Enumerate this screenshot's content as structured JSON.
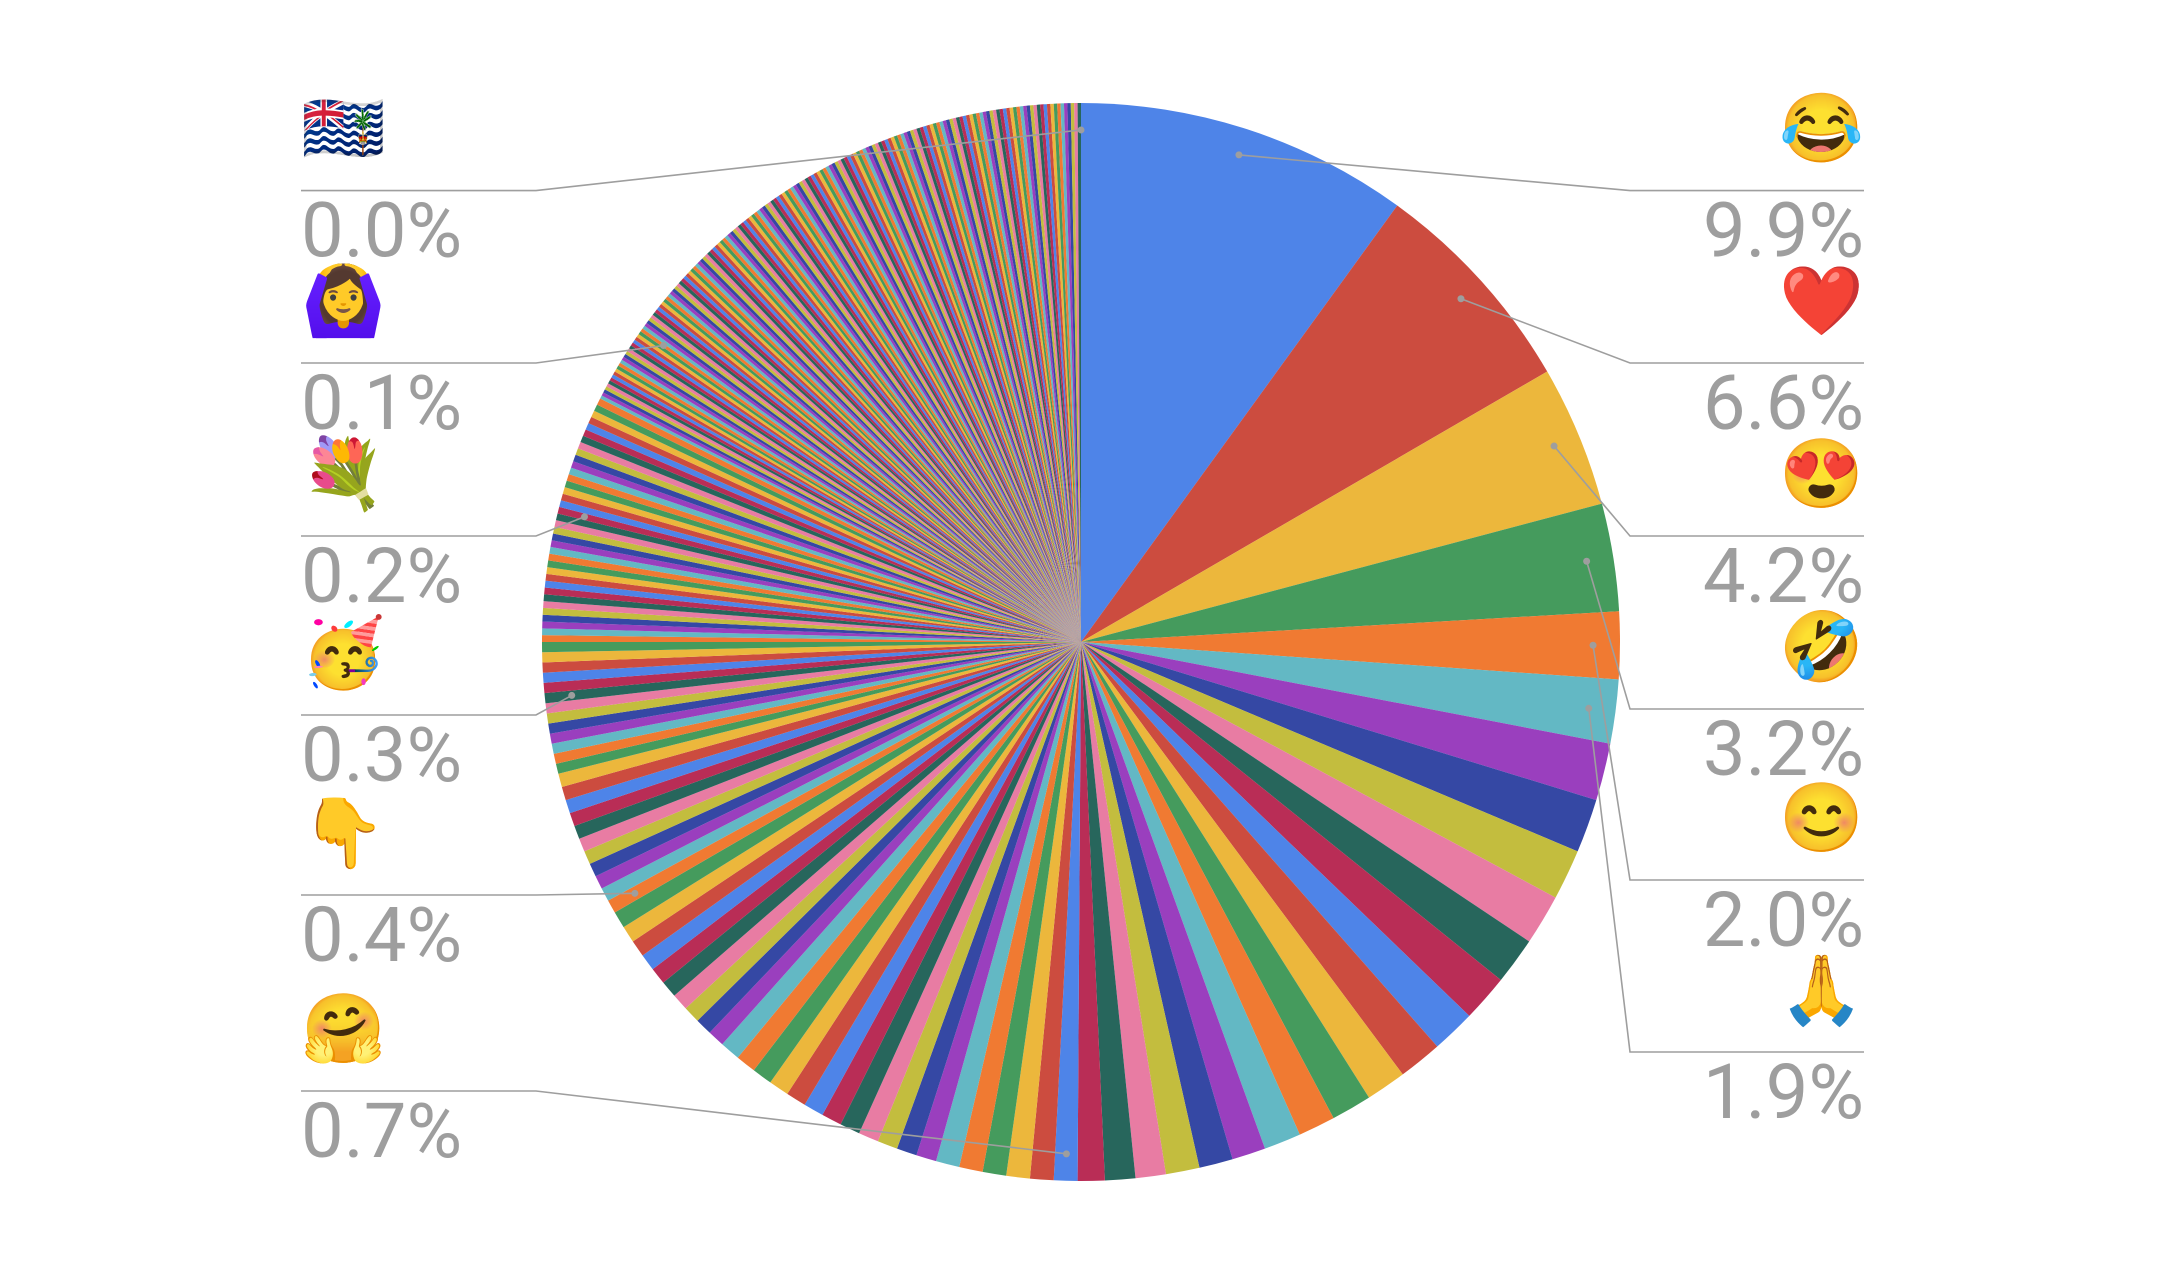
{
  "chart_data": {
    "type": "pie",
    "colors": [
      "#4e84e8",
      "#cc4c3f",
      "#ecb73c",
      "#459b5d",
      "#f07a32",
      "#63b8c4",
      "#9a3fbe",
      "#3548a4",
      "#c3bd3e",
      "#e87ca3",
      "#27665c",
      "#b92d56"
    ],
    "categories": [
      "😂",
      "❤️",
      "😍",
      "🤣",
      "😊",
      "🙏",
      null,
      null,
      null,
      null,
      null,
      null,
      null,
      null,
      null,
      null,
      null,
      null,
      null,
      null,
      null,
      null,
      null,
      null,
      "🤗",
      null,
      null,
      null,
      null,
      null,
      null,
      null,
      null,
      null,
      null,
      null,
      null,
      null,
      null,
      null,
      null,
      null,
      null,
      null,
      null,
      null,
      null,
      null,
      null,
      null,
      null,
      null,
      "👇",
      null,
      null,
      null,
      null,
      null,
      null,
      null,
      null,
      null,
      null,
      null,
      null,
      null,
      null,
      null,
      null,
      null,
      "🥳",
      null,
      null,
      null,
      null,
      null,
      null,
      null,
      null,
      null,
      null,
      null,
      null,
      null,
      null,
      null,
      null,
      null,
      null,
      null,
      null,
      null,
      null,
      null,
      null,
      "💐",
      null,
      null,
      null,
      null,
      null,
      null,
      null,
      null,
      null,
      null,
      null,
      null,
      null,
      null,
      null,
      null,
      null,
      null,
      null,
      null,
      null,
      null,
      null,
      null,
      null,
      null,
      null,
      null,
      null,
      null,
      null,
      null,
      null,
      null,
      null,
      null,
      null,
      null,
      null,
      null,
      "🙆‍♀️",
      null,
      null,
      null,
      null,
      null,
      null,
      null,
      null,
      null,
      null,
      null,
      null,
      null,
      null,
      null,
      null,
      null,
      null,
      null,
      null,
      null,
      null,
      null,
      null,
      null,
      null,
      null,
      null,
      null,
      null,
      null,
      null,
      null,
      null,
      null,
      null,
      null,
      null,
      null,
      null,
      null,
      null,
      null,
      null,
      null,
      null,
      null,
      null,
      null,
      null,
      null,
      null,
      null,
      null,
      null,
      null,
      null,
      null,
      null,
      null,
      null,
      null,
      null,
      null,
      null,
      null,
      null,
      null,
      null,
      null,
      null,
      null,
      null,
      null,
      null,
      null,
      null,
      null,
      null,
      null,
      null,
      null,
      null,
      null,
      null,
      null,
      null,
      null,
      null,
      null,
      null,
      null,
      null,
      null,
      null,
      null,
      null,
      null,
      null,
      null,
      null,
      null,
      null,
      null,
      null,
      null,
      null,
      null,
      null,
      null,
      null,
      null,
      null,
      null,
      null,
      null,
      null,
      null,
      null,
      null,
      null,
      null,
      null,
      null,
      null,
      null,
      null,
      null,
      null,
      null,
      null,
      null,
      null,
      null,
      null,
      null,
      null,
      null,
      null,
      null,
      null,
      null,
      null,
      null,
      null,
      null,
      null,
      null,
      null,
      null,
      "🇮🇴"
    ],
    "values": [
      9.9,
      6.6,
      4.2,
      3.2,
      2.0,
      1.9,
      1.7,
      1.6,
      1.5,
      1.5,
      1.4,
      1.4,
      1.3,
      1.3,
      1.2,
      1.2,
      1.1,
      1.1,
      1.0,
      1.0,
      1.0,
      0.9,
      0.9,
      0.8,
      0.7,
      0.7,
      0.7,
      0.7,
      0.7,
      0.7,
      0.6,
      0.6,
      0.6,
      0.6,
      0.6,
      0.6,
      0.6,
      0.6,
      0.6,
      0.6,
      0.6,
      0.6,
      0.5,
      0.5,
      0.5,
      0.5,
      0.5,
      0.5,
      0.5,
      0.5,
      0.5,
      0.5,
      0.4,
      0.4,
      0.4,
      0.4,
      0.4,
      0.4,
      0.4,
      0.4,
      0.4,
      0.4,
      0.4,
      0.3,
      0.3,
      0.3,
      0.3,
      0.3,
      0.3,
      0.3,
      0.3,
      0.3,
      0.3,
      0.3,
      0.3,
      0.3,
      0.2,
      0.2,
      0.2,
      0.2,
      0.2,
      0.2,
      0.2,
      0.2,
      0.2,
      0.2,
      0.2,
      0.2,
      0.2,
      0.2,
      0.2,
      0.2,
      0.2,
      0.2,
      0.2,
      0.2,
      0.2,
      0.2,
      0.2,
      0.2,
      0.2,
      0.2,
      0.2,
      0.2,
      0.2,
      0.2,
      0.2,
      0.2,
      0.2,
      0.2,
      0.2,
      0.2,
      0.2,
      0.1,
      0.1,
      0.1,
      0.1,
      0.1,
      0.1,
      0.1,
      0.1,
      0.1,
      0.1,
      0.1,
      0.1,
      0.1,
      0.1,
      0.1,
      0.1,
      0.1,
      0.1,
      0.1,
      0.1,
      0.1,
      0.1,
      0.1,
      0.1,
      0.1,
      0.1,
      0.1,
      0.1,
      0.1,
      0.1,
      0.1,
      0.1,
      0.1,
      0.1,
      0.1,
      0.1,
      0.1,
      0.1,
      0.1,
      0.1,
      0.1,
      0.1,
      0.1,
      0.1,
      0.1,
      0.1,
      0.1,
      0.1,
      0.1,
      0.1,
      0.1,
      0.1,
      0.1,
      0.1,
      0.1,
      0.1,
      0.1,
      0.1,
      0.1,
      0.1,
      0.1,
      0.1,
      0.1,
      0.1,
      0.1,
      0.1,
      0.1,
      0.1,
      0.1,
      0.1,
      0.1,
      0.1,
      0.1,
      0.1,
      0.1,
      0.1,
      0.1,
      0.1,
      0.1,
      0.1,
      0.1,
      0.1,
      0.1,
      0.1,
      0.1,
      0.1,
      0.1,
      0.1,
      0.1,
      0.1,
      0.1,
      0.1,
      0.1,
      0.1,
      0.1,
      0.1,
      0.1,
      0.1,
      0.1,
      0.1,
      0.1,
      0.1,
      0.1,
      0.1,
      0.1,
      0.1,
      0.1,
      0.1,
      0.1,
      0.1,
      0.1,
      0.1,
      0.1,
      0.1,
      0.1,
      0.1,
      0.1,
      0.1,
      0.1,
      0.1,
      0.1,
      0.1,
      0.1,
      0.1,
      0.1,
      0.1,
      0.1,
      0.1,
      0.1,
      0.1,
      0.1,
      0.1,
      0.1,
      0.1,
      0.1,
      0.1,
      0.1,
      0.1,
      0.1,
      0.1,
      0.1,
      0.1,
      0.1,
      0.1,
      0.1,
      0.1,
      0.1,
      0.1,
      0.1,
      0.1,
      0.1,
      0.1,
      0.1,
      0.1,
      0.1,
      0.1,
      0.1,
      0.1,
      0.1,
      0.1,
      0.1,
      0.1,
      0.1,
      0.1,
      0.1,
      0.1,
      0.1,
      0.1,
      0.1,
      0.1,
      0.1,
      0.1,
      0.1,
      0.1,
      0.0
    ],
    "value_labels": [
      "9.9%",
      "6.6%",
      "4.2%",
      "3.2%",
      "2.0%",
      "1.9%",
      null,
      null,
      null,
      null,
      null,
      null,
      null,
      null,
      null,
      null,
      null,
      null,
      null,
      null,
      null,
      null,
      null,
      null,
      "0.7%",
      null,
      null,
      null,
      null,
      null,
      null,
      null,
      null,
      null,
      null,
      null,
      null,
      null,
      null,
      null,
      null,
      null,
      null,
      null,
      null,
      null,
      null,
      null,
      null,
      null,
      null,
      null,
      "0.4%",
      null,
      null,
      null,
      null,
      null,
      null,
      null,
      null,
      null,
      null,
      null,
      null,
      null,
      null,
      null,
      null,
      null,
      "0.3%",
      null,
      null,
      null,
      null,
      null,
      null,
      null,
      null,
      null,
      null,
      null,
      null,
      null,
      null,
      null,
      null,
      null,
      null,
      null,
      null,
      null,
      null,
      null,
      null,
      "0.2%",
      null,
      null,
      null,
      null,
      null,
      null,
      null,
      null,
      null,
      null,
      null,
      null,
      null,
      null,
      null,
      null,
      null,
      null,
      null,
      null,
      null,
      null,
      null,
      null,
      null,
      null,
      null,
      null,
      null,
      null,
      null,
      null,
      null,
      null,
      null,
      null,
      null,
      null,
      null,
      null,
      "0.1%",
      null,
      null,
      null,
      null,
      null,
      null,
      null,
      null,
      null,
      null,
      null,
      null,
      null,
      null,
      null,
      null,
      null,
      null,
      null,
      null,
      null,
      null,
      null,
      null,
      null,
      null,
      null,
      null,
      null,
      null,
      null,
      null,
      null,
      null,
      null,
      null,
      null,
      null,
      null,
      null,
      null,
      null,
      null,
      null,
      null,
      null,
      null,
      null,
      null,
      null,
      null,
      null,
      null,
      null,
      null,
      null,
      null,
      null,
      null,
      null,
      null,
      null,
      null,
      null,
      null,
      null,
      null,
      null,
      null,
      null,
      null,
      null,
      null,
      null,
      null,
      null,
      null,
      null,
      null,
      null,
      null,
      null,
      null,
      null,
      null,
      null,
      null,
      null,
      null,
      null,
      null,
      null,
      null,
      null,
      null,
      null,
      null,
      null,
      null,
      null,
      null,
      null,
      null,
      null,
      null,
      null,
      null,
      null,
      null,
      null,
      null,
      null,
      null,
      null,
      null,
      null,
      null,
      null,
      null,
      null,
      null,
      null,
      null,
      null,
      null,
      null,
      null,
      null,
      null,
      null,
      null,
      null,
      null,
      null,
      null,
      null,
      null,
      null,
      null,
      null,
      null,
      null,
      null,
      null,
      null,
      null,
      null,
      null,
      null,
      null,
      "0.0%"
    ]
  }
}
